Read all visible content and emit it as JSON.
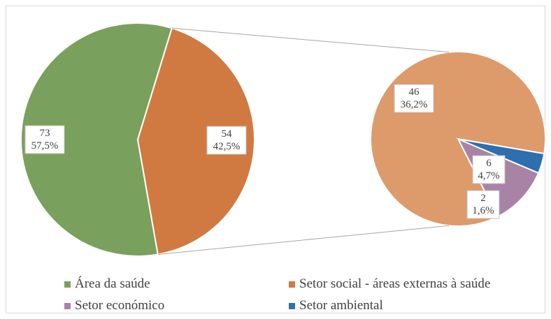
{
  "chart_data": {
    "type": "pie",
    "subtype": "pie-of-pie",
    "title": "",
    "main_pie": [
      {
        "name": "Área da saúde",
        "count": 73,
        "percent": "57,5%",
        "color": "#7aa05d"
      },
      {
        "name": "Setor social - áreas externas à saúde",
        "count": 54,
        "percent": "42,5%",
        "color": "#d07a41"
      }
    ],
    "secondary_pie": [
      {
        "name": "Setor social - áreas externas à saúde",
        "count": 46,
        "percent": "36,2%",
        "color": "#dd9a6a"
      },
      {
        "name": "Setor económico",
        "count": 6,
        "percent": "4,7%",
        "color": "#a983a5"
      },
      {
        "name": "Setor ambiental",
        "count": 2,
        "percent": "1,6%",
        "color": "#2e6fb0"
      }
    ],
    "legend": {
      "placement": "bottom",
      "items": [
        {
          "label": "Área da saúde",
          "color": "#7aa05d"
        },
        {
          "label": "Setor social - áreas externas à saúde",
          "color": "#d07a41"
        },
        {
          "label": "Setor económico",
          "color": "#a983a5"
        },
        {
          "label": "Setor ambiental",
          "color": "#2e6fb0"
        }
      ]
    }
  },
  "labels": {
    "main_saude_count": "73",
    "main_saude_percent": "57,5%",
    "main_social_count": "54",
    "main_social_percent": "42,5%",
    "sec_social_count": "46",
    "sec_social_percent": "36,2%",
    "sec_economico_count": "6",
    "sec_economico_percent": "4,7%",
    "sec_ambiental_count": "2",
    "sec_ambiental_percent": "1,6%"
  }
}
